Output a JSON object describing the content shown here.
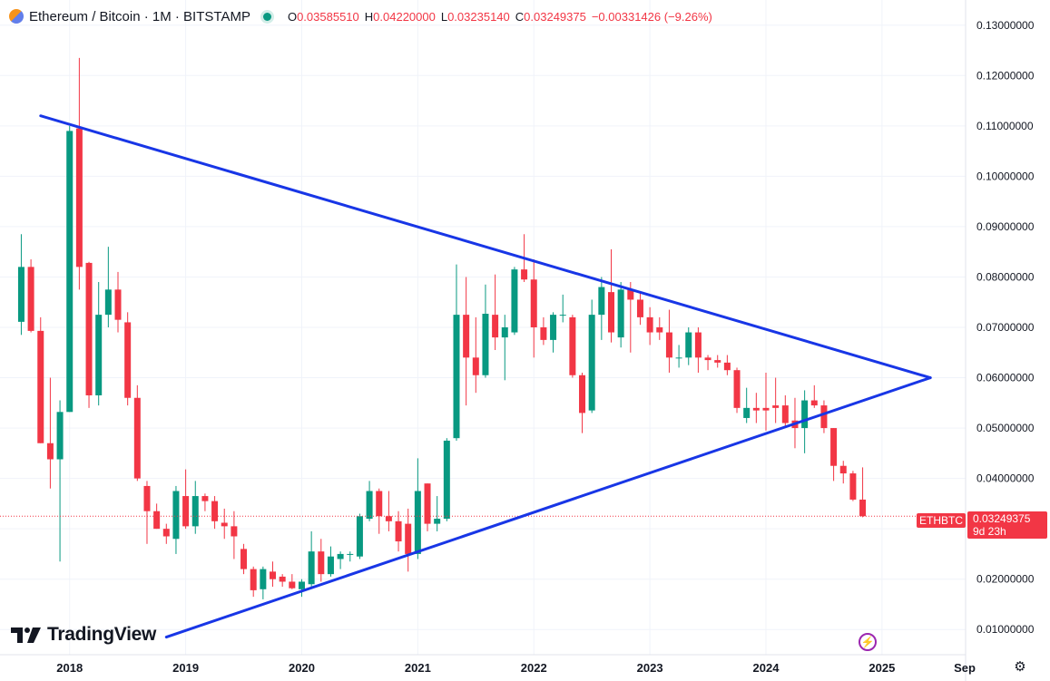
{
  "header": {
    "title": "Ethereum / Bitcoin · 1M · BITSTAMP",
    "open_label": "O",
    "open": "0.03585510",
    "high_label": "H",
    "high": "0.04220000",
    "low_label": "L",
    "low": "0.03235140",
    "close_label": "C",
    "close": "0.03249375",
    "change": "−0.00331426 (−9.26%)"
  },
  "last_price": {
    "symbol": "ETHBTC",
    "price": "0.03249375",
    "countdown": "9d 23h"
  },
  "brand": {
    "name": "TradingView"
  },
  "colors": {
    "up": "#089981",
    "down": "#f23645",
    "trendline": "#1836e6",
    "text": "#131722"
  },
  "icons": {
    "alert": "lightning-bolt-icon",
    "settings": "gear-icon",
    "market_status": "market-open-dot-icon"
  },
  "chart_data": {
    "type": "candlestick",
    "interval": "1M",
    "y_axis": {
      "position": "right",
      "min": 0.005,
      "max": 0.135,
      "ticks": [
        "0.01000000",
        "0.02000000",
        "0.03000000",
        "0.04000000",
        "0.05000000",
        "0.06000000",
        "0.07000000",
        "0.08000000",
        "0.09000000",
        "0.10000000",
        "0.11000000",
        "0.12000000",
        "0.13000000"
      ]
    },
    "x_axis": {
      "min": "2017-06",
      "max": "2025-09",
      "ticks": [
        {
          "date": "2018-01",
          "label": "2018"
        },
        {
          "date": "2019-01",
          "label": "2019"
        },
        {
          "date": "2020-01",
          "label": "2020"
        },
        {
          "date": "2021-01",
          "label": "2021"
        },
        {
          "date": "2022-01",
          "label": "2022"
        },
        {
          "date": "2023-01",
          "label": "2023"
        },
        {
          "date": "2024-01",
          "label": "2024"
        },
        {
          "date": "2025-01",
          "label": "2025"
        },
        {
          "date": "2025-09",
          "label": "Sep"
        }
      ]
    },
    "candles": [
      {
        "t": "2017-08",
        "o": 0.0711,
        "h": 0.0885,
        "l": 0.0685,
        "c": 0.082
      },
      {
        "t": "2017-09",
        "o": 0.082,
        "h": 0.0835,
        "l": 0.069,
        "c": 0.0693
      },
      {
        "t": "2017-10",
        "o": 0.0693,
        "h": 0.072,
        "l": 0.047,
        "c": 0.047
      },
      {
        "t": "2017-11",
        "o": 0.047,
        "h": 0.06,
        "l": 0.038,
        "c": 0.0438
      },
      {
        "t": "2017-12",
        "o": 0.0438,
        "h": 0.0555,
        "l": 0.0235,
        "c": 0.0532
      },
      {
        "t": "2018-01",
        "o": 0.0532,
        "h": 0.11,
        "l": 0.0532,
        "c": 0.109
      },
      {
        "t": "2018-02",
        "o": 0.1095,
        "h": 0.1235,
        "l": 0.0775,
        "c": 0.082
      },
      {
        "t": "2018-03",
        "o": 0.0828,
        "h": 0.083,
        "l": 0.054,
        "c": 0.0565
      },
      {
        "t": "2018-04",
        "o": 0.0565,
        "h": 0.079,
        "l": 0.0545,
        "c": 0.0725
      },
      {
        "t": "2018-05",
        "o": 0.0725,
        "h": 0.086,
        "l": 0.07,
        "c": 0.0775
      },
      {
        "t": "2018-06",
        "o": 0.0775,
        "h": 0.081,
        "l": 0.069,
        "c": 0.0715
      },
      {
        "t": "2018-07",
        "o": 0.071,
        "h": 0.073,
        "l": 0.0545,
        "c": 0.056
      },
      {
        "t": "2018-08",
        "o": 0.056,
        "h": 0.0585,
        "l": 0.0395,
        "c": 0.04
      },
      {
        "t": "2018-09",
        "o": 0.0385,
        "h": 0.0395,
        "l": 0.027,
        "c": 0.0335
      },
      {
        "t": "2018-10",
        "o": 0.0335,
        "h": 0.035,
        "l": 0.03,
        "c": 0.03
      },
      {
        "t": "2018-11",
        "o": 0.03,
        "h": 0.031,
        "l": 0.027,
        "c": 0.0285
      },
      {
        "t": "2018-12",
        "o": 0.028,
        "h": 0.0385,
        "l": 0.025,
        "c": 0.0375
      },
      {
        "t": "2019-01",
        "o": 0.0365,
        "h": 0.0418,
        "l": 0.03,
        "c": 0.0305
      },
      {
        "t": "2019-02",
        "o": 0.0305,
        "h": 0.0395,
        "l": 0.029,
        "c": 0.0365
      },
      {
        "t": "2019-03",
        "o": 0.0365,
        "h": 0.037,
        "l": 0.0335,
        "c": 0.0355
      },
      {
        "t": "2019-04",
        "o": 0.0355,
        "h": 0.0365,
        "l": 0.03,
        "c": 0.0315
      },
      {
        "t": "2019-05",
        "o": 0.0312,
        "h": 0.034,
        "l": 0.028,
        "c": 0.0305
      },
      {
        "t": "2019-06",
        "o": 0.0305,
        "h": 0.0335,
        "l": 0.024,
        "c": 0.0285
      },
      {
        "t": "2019-07",
        "o": 0.026,
        "h": 0.027,
        "l": 0.021,
        "c": 0.022
      },
      {
        "t": "2019-08",
        "o": 0.022,
        "h": 0.0225,
        "l": 0.0165,
        "c": 0.0178
      },
      {
        "t": "2019-09",
        "o": 0.018,
        "h": 0.0225,
        "l": 0.016,
        "c": 0.022
      },
      {
        "t": "2019-10",
        "o": 0.0215,
        "h": 0.0235,
        "l": 0.0185,
        "c": 0.02
      },
      {
        "t": "2019-11",
        "o": 0.0205,
        "h": 0.021,
        "l": 0.0185,
        "c": 0.0195
      },
      {
        "t": "2019-12",
        "o": 0.0195,
        "h": 0.021,
        "l": 0.018,
        "c": 0.0182
      },
      {
        "t": "2020-01",
        "o": 0.018,
        "h": 0.02,
        "l": 0.0165,
        "c": 0.0195
      },
      {
        "t": "2020-02",
        "o": 0.019,
        "h": 0.0295,
        "l": 0.0185,
        "c": 0.0255
      },
      {
        "t": "2020-03",
        "o": 0.0255,
        "h": 0.028,
        "l": 0.0195,
        "c": 0.021
      },
      {
        "t": "2020-04",
        "o": 0.021,
        "h": 0.0265,
        "l": 0.0205,
        "c": 0.0245
      },
      {
        "t": "2020-05",
        "o": 0.024,
        "h": 0.0255,
        "l": 0.022,
        "c": 0.025
      },
      {
        "t": "2020-06",
        "o": 0.025,
        "h": 0.0255,
        "l": 0.0235,
        "c": 0.025
      },
      {
        "t": "2020-07",
        "o": 0.0245,
        "h": 0.033,
        "l": 0.024,
        "c": 0.0325
      },
      {
        "t": "2020-08",
        "o": 0.032,
        "h": 0.0395,
        "l": 0.0315,
        "c": 0.0375
      },
      {
        "t": "2020-09",
        "o": 0.0375,
        "h": 0.038,
        "l": 0.029,
        "c": 0.0325
      },
      {
        "t": "2020-10",
        "o": 0.0325,
        "h": 0.0375,
        "l": 0.0295,
        "c": 0.0315
      },
      {
        "t": "2020-11",
        "o": 0.0315,
        "h": 0.0335,
        "l": 0.0255,
        "c": 0.0275
      },
      {
        "t": "2020-12",
        "o": 0.031,
        "h": 0.034,
        "l": 0.0215,
        "c": 0.025
      },
      {
        "t": "2021-01",
        "o": 0.025,
        "h": 0.044,
        "l": 0.024,
        "c": 0.0375
      },
      {
        "t": "2021-02",
        "o": 0.039,
        "h": 0.039,
        "l": 0.0295,
        "c": 0.031
      },
      {
        "t": "2021-03",
        "o": 0.031,
        "h": 0.0365,
        "l": 0.0295,
        "c": 0.032
      },
      {
        "t": "2021-04",
        "o": 0.032,
        "h": 0.048,
        "l": 0.0315,
        "c": 0.0475
      },
      {
        "t": "2021-05",
        "o": 0.048,
        "h": 0.0825,
        "l": 0.0475,
        "c": 0.0725
      },
      {
        "t": "2021-06",
        "o": 0.0725,
        "h": 0.08,
        "l": 0.0545,
        "c": 0.064
      },
      {
        "t": "2021-07",
        "o": 0.064,
        "h": 0.072,
        "l": 0.057,
        "c": 0.0605
      },
      {
        "t": "2021-08",
        "o": 0.0605,
        "h": 0.0785,
        "l": 0.06,
        "c": 0.0727
      },
      {
        "t": "2021-09",
        "o": 0.0725,
        "h": 0.0805,
        "l": 0.0655,
        "c": 0.068
      },
      {
        "t": "2021-10",
        "o": 0.068,
        "h": 0.0725,
        "l": 0.0595,
        "c": 0.07
      },
      {
        "t": "2021-11",
        "o": 0.069,
        "h": 0.082,
        "l": 0.0685,
        "c": 0.0815
      },
      {
        "t": "2021-12",
        "o": 0.0815,
        "h": 0.0885,
        "l": 0.079,
        "c": 0.0795
      },
      {
        "t": "2022-01",
        "o": 0.0795,
        "h": 0.0835,
        "l": 0.064,
        "c": 0.07
      },
      {
        "t": "2022-02",
        "o": 0.07,
        "h": 0.072,
        "l": 0.0665,
        "c": 0.0675
      },
      {
        "t": "2022-03",
        "o": 0.0675,
        "h": 0.073,
        "l": 0.065,
        "c": 0.0725
      },
      {
        "t": "2022-04",
        "o": 0.0725,
        "h": 0.0765,
        "l": 0.071,
        "c": 0.0725
      },
      {
        "t": "2022-05",
        "o": 0.072,
        "h": 0.0725,
        "l": 0.06,
        "c": 0.0605
      },
      {
        "t": "2022-06",
        "o": 0.0605,
        "h": 0.061,
        "l": 0.049,
        "c": 0.053
      },
      {
        "t": "2022-07",
        "o": 0.0535,
        "h": 0.0755,
        "l": 0.053,
        "c": 0.0725
      },
      {
        "t": "2022-08",
        "o": 0.0725,
        "h": 0.08,
        "l": 0.0675,
        "c": 0.078
      },
      {
        "t": "2022-09",
        "o": 0.077,
        "h": 0.0855,
        "l": 0.067,
        "c": 0.069
      },
      {
        "t": "2022-10",
        "o": 0.068,
        "h": 0.079,
        "l": 0.066,
        "c": 0.0775
      },
      {
        "t": "2022-11",
        "o": 0.0775,
        "h": 0.079,
        "l": 0.065,
        "c": 0.0755
      },
      {
        "t": "2022-12",
        "o": 0.0755,
        "h": 0.077,
        "l": 0.0705,
        "c": 0.072
      },
      {
        "t": "2023-01",
        "o": 0.072,
        "h": 0.074,
        "l": 0.0665,
        "c": 0.069
      },
      {
        "t": "2023-02",
        "o": 0.07,
        "h": 0.072,
        "l": 0.0675,
        "c": 0.069
      },
      {
        "t": "2023-03",
        "o": 0.069,
        "h": 0.0735,
        "l": 0.061,
        "c": 0.064
      },
      {
        "t": "2023-04",
        "o": 0.064,
        "h": 0.0665,
        "l": 0.062,
        "c": 0.064
      },
      {
        "t": "2023-05",
        "o": 0.064,
        "h": 0.07,
        "l": 0.0625,
        "c": 0.069
      },
      {
        "t": "2023-06",
        "o": 0.069,
        "h": 0.07,
        "l": 0.061,
        "c": 0.064
      },
      {
        "t": "2023-07",
        "o": 0.064,
        "h": 0.0645,
        "l": 0.0615,
        "c": 0.0635
      },
      {
        "t": "2023-08",
        "o": 0.0635,
        "h": 0.0645,
        "l": 0.062,
        "c": 0.063
      },
      {
        "t": "2023-09",
        "o": 0.063,
        "h": 0.0645,
        "l": 0.0605,
        "c": 0.0615
      },
      {
        "t": "2023-10",
        "o": 0.0615,
        "h": 0.062,
        "l": 0.053,
        "c": 0.054
      },
      {
        "t": "2023-11",
        "o": 0.052,
        "h": 0.058,
        "l": 0.051,
        "c": 0.054
      },
      {
        "t": "2023-12",
        "o": 0.054,
        "h": 0.057,
        "l": 0.051,
        "c": 0.0535
      },
      {
        "t": "2024-01",
        "o": 0.054,
        "h": 0.061,
        "l": 0.0495,
        "c": 0.0535
      },
      {
        "t": "2024-02",
        "o": 0.0545,
        "h": 0.06,
        "l": 0.051,
        "c": 0.054
      },
      {
        "t": "2024-03",
        "o": 0.0545,
        "h": 0.0565,
        "l": 0.05,
        "c": 0.051
      },
      {
        "t": "2024-04",
        "o": 0.0515,
        "h": 0.056,
        "l": 0.046,
        "c": 0.05
      },
      {
        "t": "2024-05",
        "o": 0.05,
        "h": 0.0575,
        "l": 0.045,
        "c": 0.0555
      },
      {
        "t": "2024-06",
        "o": 0.0555,
        "h": 0.0585,
        "l": 0.054,
        "c": 0.0545
      },
      {
        "t": "2024-07",
        "o": 0.0545,
        "h": 0.0555,
        "l": 0.049,
        "c": 0.05
      },
      {
        "t": "2024-08",
        "o": 0.05,
        "h": 0.05,
        "l": 0.0395,
        "c": 0.0425
      },
      {
        "t": "2024-09",
        "o": 0.0425,
        "h": 0.0435,
        "l": 0.039,
        "c": 0.041
      },
      {
        "t": "2024-10",
        "o": 0.041,
        "h": 0.0415,
        "l": 0.0355,
        "c": 0.0358
      },
      {
        "t": "2024-11",
        "o": 0.0358,
        "h": 0.0422,
        "l": 0.0323,
        "c": 0.0325
      }
    ],
    "trendlines": [
      {
        "name": "upper",
        "from": {
          "t": "2017-10",
          "v": 0.112
        },
        "to": {
          "t": "2025-06",
          "v": 0.06
        }
      },
      {
        "name": "lower",
        "from": {
          "t": "2018-11",
          "v": 0.0085
        },
        "to": {
          "t": "2025-06",
          "v": 0.06
        }
      }
    ],
    "last_price_line": 0.03249375
  }
}
